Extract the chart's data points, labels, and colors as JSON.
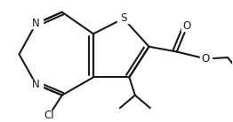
{
  "bg_color": "#ffffff",
  "line_color": "#1a1a1a",
  "line_width": 1.5,
  "font_size": 8.5,
  "figsize": [
    2.62,
    1.38
  ],
  "dpi": 100,
  "xlim": [
    0.0,
    1.0
  ],
  "ylim": [
    0.0,
    1.0
  ]
}
